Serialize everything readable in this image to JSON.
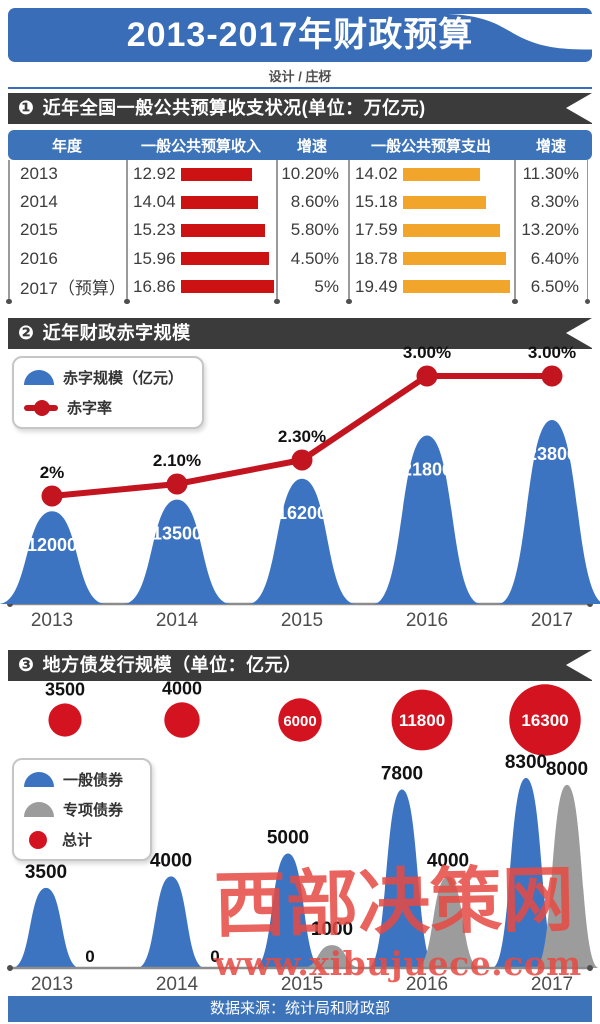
{
  "header": {
    "title": "2013-2017年财政预算",
    "credit": "设计 / 庄枒"
  },
  "sections": [
    {
      "num": "❶",
      "title": "近年全国一般公共预算收支状况(单位：万亿元)"
    },
    {
      "num": "❷",
      "title": "近年财政赤字规模"
    },
    {
      "num": "❸",
      "title": "地方债发行规模（单位：亿元）"
    }
  ],
  "watermark": {
    "brand": "西部决策网",
    "url": "www.xibujuece.com"
  },
  "footer": {
    "source": "数据来源：统计局和财政部"
  },
  "colors": {
    "banner_blue": "#3a6db7",
    "table_header_blue": "#3d73b9",
    "band_dark": "#3b3b3b",
    "income_bar_red": "#cc1212",
    "expense_bar_orange": "#f2a52b",
    "peak_blue": "#3d74c2",
    "peak_gray": "#9c9c9c",
    "line_red": "#c2151f",
    "circle_red": "#d31420",
    "watermark_red": "#e64a42",
    "axis_gray": "#8c8c8c"
  },
  "chart_data": [
    {
      "type": "table",
      "title": "近年全国一般公共预算收支状况",
      "unit": "万亿元",
      "columns": [
        "年度",
        "一般公共预算收入",
        "增速",
        "一般公共预算支出",
        "增速"
      ],
      "rows": [
        {
          "year": "2013",
          "income": 12.92,
          "income_growth": "10.20%",
          "expense": 14.02,
          "expense_growth": "11.30%"
        },
        {
          "year": "2014",
          "income": 14.04,
          "income_growth": "8.60%",
          "expense": 15.18,
          "expense_growth": "8.30%"
        },
        {
          "year": "2015",
          "income": 15.23,
          "income_growth": "5.80%",
          "expense": 17.59,
          "expense_growth": "13.20%"
        },
        {
          "year": "2016",
          "income": 15.96,
          "income_growth": "4.50%",
          "expense": 18.78,
          "expense_growth": "6.40%"
        },
        {
          "year": "2017（预算）",
          "income": 16.86,
          "income_growth": "5%",
          "expense": 19.49,
          "expense_growth": "6.50%"
        }
      ]
    },
    {
      "type": "area",
      "title": "近年财政赤字规模",
      "categories": [
        "2013",
        "2014",
        "2015",
        "2016",
        "2017"
      ],
      "legend": [
        {
          "label": "赤字规模（亿元）",
          "icon": "dome",
          "color": "#3d74c2"
        },
        {
          "label": "赤字率",
          "icon": "line-dot",
          "color": "#c2151f"
        }
      ],
      "series": [
        {
          "name": "赤字规模（亿元）",
          "type": "peak",
          "values": [
            12000,
            13500,
            16200,
            21800,
            23800
          ]
        },
        {
          "name": "赤字率",
          "type": "line",
          "values": [
            2.0,
            2.1,
            2.3,
            3.0,
            3.0
          ],
          "labels": [
            "2%",
            "2.10%",
            "2.30%",
            "3.00%",
            "3.00%"
          ]
        }
      ],
      "ylim": [
        0,
        25000
      ],
      "legend_position": "top-left",
      "grid": false
    },
    {
      "type": "area",
      "title": "地方债发行规模",
      "unit": "亿元",
      "categories": [
        "2013",
        "2014",
        "2015",
        "2016",
        "2017"
      ],
      "legend": [
        {
          "label": "一般债券",
          "icon": "dome",
          "color": "#3d74c2"
        },
        {
          "label": "专项债券",
          "icon": "dome",
          "color": "#9c9c9c"
        },
        {
          "label": "总计",
          "icon": "circle",
          "color": "#d31420"
        }
      ],
      "series": [
        {
          "name": "一般债券",
          "type": "peak",
          "values": [
            3500,
            4000,
            5000,
            7800,
            8300
          ]
        },
        {
          "name": "专项债券",
          "type": "peak",
          "values": [
            0,
            0,
            1000,
            4000,
            8000
          ]
        },
        {
          "name": "总计",
          "type": "bubble",
          "values": [
            3500,
            4000,
            6000,
            11800,
            16300
          ]
        }
      ],
      "ylim": [
        0,
        8300
      ],
      "legend_position": "middle-left",
      "grid": false
    }
  ]
}
